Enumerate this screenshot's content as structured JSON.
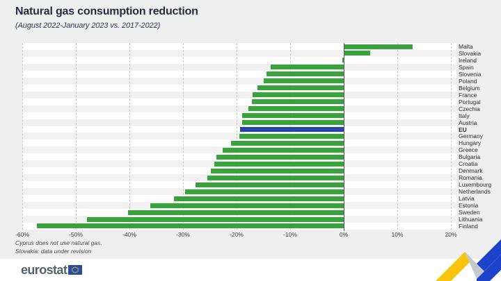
{
  "header": {
    "title": "Natural gas consumption reduction",
    "subtitle": "(August 2022-January 2023 vs. 2017-2022)"
  },
  "footnotes": {
    "line1": "Cyprus does not use natural gas.",
    "line2": "Slovakia: data under revision"
  },
  "footer": {
    "logo_text": "eurostat"
  },
  "colors": {
    "bar_green": "#3aa23c",
    "bar_eu_blue": "#2745a9",
    "zero_line": "#5a5a5a",
    "band_grey": "#f2f1f2",
    "logo_flag_blue": "#2a4da0",
    "logo_star_yellow": "#ffd617",
    "zigzag_yellow": "#f8c40e",
    "zigzag_grey": "#c6c8cc",
    "zigzag_blue": "#1d43c8"
  },
  "chart_data": {
    "type": "bar",
    "orientation": "horizontal",
    "title": "Natural gas consumption reduction",
    "subtitle": "(August 2022-January 2023 vs. 2017-2022)",
    "unit": "%",
    "xlim": [
      -60,
      20
    ],
    "grid": "dashed-vertical-every-10pct",
    "legend": "none",
    "x_tick_values": [
      -60,
      -50,
      -40,
      -30,
      -20,
      -10,
      0,
      10,
      20
    ],
    "x_tick_labels": [
      "-60%",
      "-50%",
      "-40%",
      "-30%",
      "-20%",
      "-10%",
      "0%",
      "10%",
      "20%"
    ],
    "categories": [
      "Malta",
      "Slovakia",
      "Ireland",
      "Spain",
      "Slovenia",
      "Poland",
      "Belgium",
      "France",
      "Portugal",
      "Czechia",
      "Italy",
      "Austria",
      "EU",
      "Germany",
      "Hungary",
      "Greece",
      "Bulgaria",
      "Croatia",
      "Denmark",
      "Romania",
      "Luxembourg",
      "Netherlands",
      "Latvia",
      "Estonia",
      "Sweden",
      "Lithuania",
      "Finland"
    ],
    "values": [
      12.7,
      4.8,
      -0.3,
      -13.7,
      -14.4,
      -14.9,
      -16.1,
      -17.0,
      -17.2,
      -17.8,
      -18.9,
      -19.0,
      -19.3,
      -19.5,
      -21.0,
      -22.6,
      -23.8,
      -24.1,
      -24.8,
      -25.4,
      -27.7,
      -29.6,
      -31.7,
      -36.1,
      -40.2,
      -47.9,
      -57.3
    ],
    "highlight_category": "EU"
  }
}
